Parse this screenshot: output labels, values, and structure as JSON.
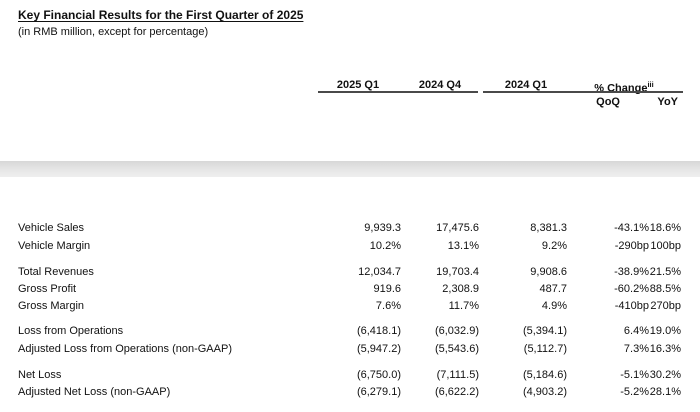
{
  "page": {
    "title": "Key Financial Results for the First Quarter of 2025",
    "subtitle": "(in RMB million, except for percentage)"
  },
  "colors": {
    "background": "#ffffff",
    "text": "#111111",
    "header_rule": "#4a4a4a",
    "divider_band": "#e0e0e0"
  },
  "table": {
    "headers": {
      "col_2025_q1": "2025 Q1",
      "col_2024_q4": "2024 Q4",
      "col_2024_q1": "2024 Q1",
      "col_change": "% Change",
      "col_change_superscript": "iii",
      "sub_qoq": "QoQ",
      "sub_yoy": "YoY"
    },
    "rows": [
      {
        "label": "Vehicle Sales",
        "q1_2025": "9,939.3",
        "q4_2024": "17,475.6",
        "q1_2024": "8,381.3",
        "qoq": "-43.1%",
        "yoy": "18.6%"
      },
      {
        "label": "Vehicle Margin",
        "q1_2025": "10.2%",
        "q4_2024": "13.1%",
        "q1_2024": "9.2%",
        "qoq": "-290bp",
        "yoy": "100bp"
      },
      {
        "label": "Total Revenues",
        "q1_2025": "12,034.7",
        "q4_2024": "19,703.4",
        "q1_2024": "9,908.6",
        "qoq": "-38.9%",
        "yoy": "21.5%"
      },
      {
        "label": "Gross Profit",
        "q1_2025": "919.6",
        "q4_2024": "2,308.9",
        "q1_2024": "487.7",
        "qoq": "-60.2%",
        "yoy": "88.5%"
      },
      {
        "label": "Gross Margin",
        "q1_2025": "7.6%",
        "q4_2024": "11.7%",
        "q1_2024": "4.9%",
        "qoq": "-410bp",
        "yoy": "270bp"
      },
      {
        "label": "Loss from Operations",
        "q1_2025": "(6,418.1)",
        "q4_2024": "(6,032.9)",
        "q1_2024": "(5,394.1)",
        "qoq": "6.4%",
        "yoy": "19.0%"
      },
      {
        "label": "Adjusted Loss from Operations (non-GAAP)",
        "q1_2025": "(5,947.2)",
        "q4_2024": "(5,543.6)",
        "q1_2024": "(5,112.7)",
        "qoq": "7.3%",
        "yoy": "16.3%"
      },
      {
        "label": "Net Loss",
        "q1_2025": "(6,750.0)",
        "q4_2024": "(7,111.5)",
        "q1_2024": "(5,184.6)",
        "qoq": "-5.1%",
        "yoy": "30.2%"
      },
      {
        "label": "Adjusted Net Loss (non-GAAP)",
        "q1_2025": "(6,279.1)",
        "q4_2024": "(6,622.2)",
        "q1_2024": "(4,903.2)",
        "qoq": "-5.2%",
        "yoy": "28.1%"
      }
    ]
  }
}
